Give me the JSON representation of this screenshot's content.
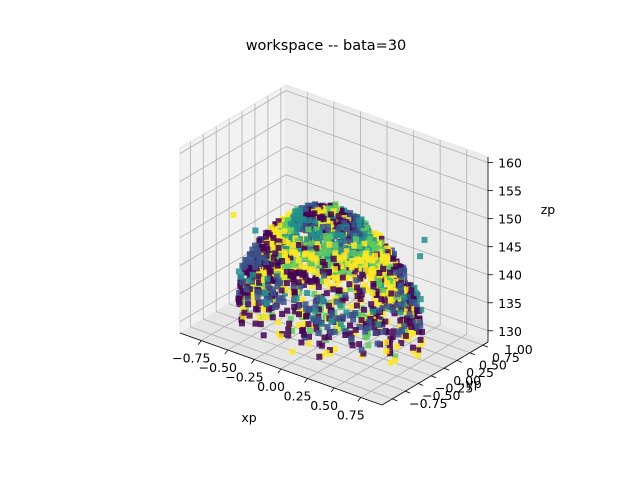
{
  "chart_data": {
    "type": "scatter",
    "projection": "3d",
    "title": "workspace -- bata=30",
    "xlabel": "xp",
    "ylabel": "yp",
    "zlabel": "zp",
    "xlim": [
      -0.95,
      0.95
    ],
    "ylim": [
      -0.95,
      1.1
    ],
    "zlim": [
      128,
      161
    ],
    "xticks": [
      -0.75,
      -0.5,
      -0.25,
      0.0,
      0.25,
      0.5,
      0.75
    ],
    "xtick_labels": [
      "−0.75",
      "−0.50",
      "−0.25",
      "0.00",
      "0.25",
      "0.50",
      "0.75"
    ],
    "yticks": [
      -0.75,
      -0.5,
      -0.25,
      0.0,
      0.25,
      0.5,
      0.75,
      1.0
    ],
    "ytick_labels": [
      "−0.75",
      "−0.50",
      "−0.25",
      "0.00",
      "0.25",
      "0.50",
      "0.75",
      "1.00"
    ],
    "zticks": [
      130,
      135,
      140,
      145,
      150,
      155,
      160
    ],
    "ztick_labels": [
      "130",
      "135",
      "140",
      "145",
      "150",
      "155",
      "160"
    ],
    "grid": true,
    "colormap": "viridis",
    "colors": [
      "#440154",
      "#3b528b",
      "#21918c",
      "#5ec962",
      "#fde725"
    ],
    "description_of_points": "dense cloud of square markers forming a dome-shaped workspace, x and y roughly from -0.75 to 0.75, z roughly from 131 to 152, colored by a viridis colormap in alternating concentric bands"
  }
}
